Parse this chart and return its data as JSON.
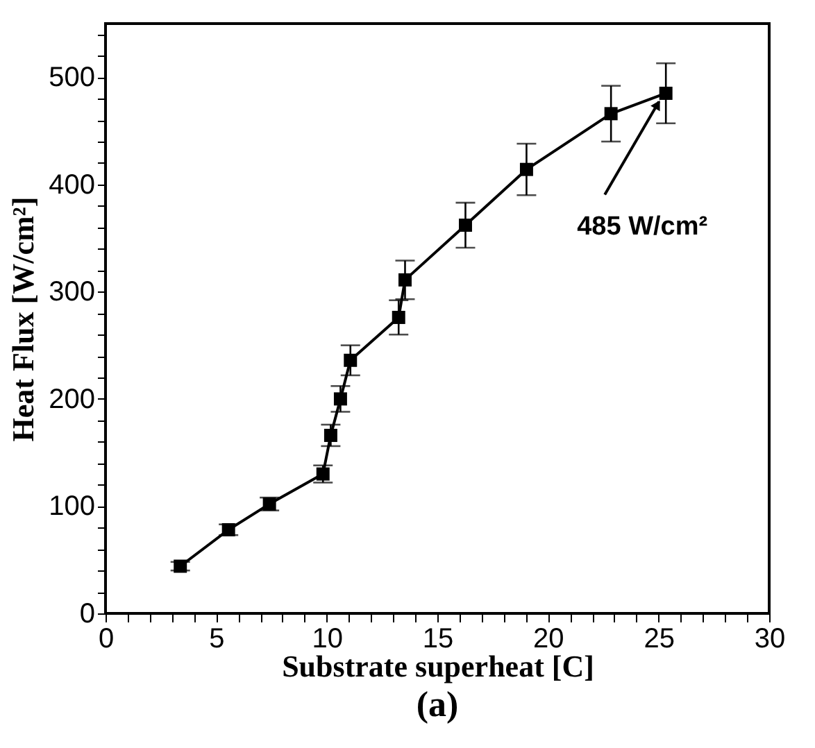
{
  "chart_data": {
    "type": "line",
    "xlabel": "Substrate superheat [C]",
    "ylabel": "Heat Flux [W/cm²]",
    "x": [
      3.38,
      5.56,
      7.41,
      9.83,
      10.18,
      10.62,
      11.07,
      13.25,
      13.54,
      16.27,
      19.03,
      22.85,
      25.33
    ],
    "series": [
      {
        "color": "#000000",
        "values": [
          44,
          78,
          102,
          130,
          166,
          200,
          236,
          276,
          311,
          362,
          414,
          466,
          485
        ],
        "errors": [
          4,
          5,
          6,
          8,
          10,
          12,
          14,
          16,
          18,
          21,
          24,
          26,
          28
        ]
      }
    ],
    "xlim": [
      0,
      30
    ],
    "ylim": [
      0,
      550
    ],
    "xticks": [
      0,
      {
        "value": 1,
        "label": null
      },
      {
        "value": 2,
        "label": null
      },
      {
        "value": 3,
        "label": null
      },
      {
        "value": 4,
        "label": null
      },
      5,
      {
        "value": 6,
        "label": null
      },
      {
        "value": 7,
        "label": null
      },
      {
        "value": 8,
        "label": null
      },
      {
        "value": 9,
        "label": null
      },
      10,
      {
        "value": 11,
        "label": null
      },
      {
        "value": 12,
        "label": null
      },
      {
        "value": 13,
        "label": null
      },
      {
        "value": 14,
        "label": null
      },
      15,
      {
        "value": 16,
        "label": null
      },
      {
        "value": 17,
        "label": null
      },
      {
        "value": 18,
        "label": null
      },
      {
        "value": 19,
        "label": null
      },
      20,
      {
        "value": 21,
        "label": null
      },
      {
        "value": 22,
        "label": null
      },
      {
        "value": 23,
        "label": null
      },
      {
        "value": 24,
        "label": null
      },
      25,
      {
        "value": 26,
        "label": null
      },
      {
        "value": 27,
        "label": null
      },
      {
        "value": 28,
        "label": null
      },
      {
        "value": 29,
        "label": null
      },
      30
    ],
    "yticks": [
      0,
      {
        "value": 20,
        "label": null
      },
      {
        "value": 40,
        "label": null
      },
      {
        "value": 60,
        "label": null
      },
      {
        "value": 80,
        "label": null
      },
      100,
      {
        "value": 120,
        "label": null
      },
      {
        "value": 140,
        "label": null
      },
      {
        "value": 160,
        "label": null
      },
      {
        "value": 180,
        "label": null
      },
      200,
      {
        "value": 220,
        "label": null
      },
      {
        "value": 240,
        "label": null
      },
      {
        "value": 260,
        "label": null
      },
      {
        "value": 280,
        "label": null
      },
      300,
      {
        "value": 320,
        "label": null
      },
      {
        "value": 340,
        "label": null
      },
      {
        "value": 360,
        "label": null
      },
      {
        "value": 380,
        "label": null
      },
      400,
      {
        "value": 420,
        "label": null
      },
      {
        "value": 440,
        "label": null
      },
      {
        "value": 460,
        "label": null
      },
      {
        "value": 480,
        "label": null
      },
      500,
      {
        "value": 520,
        "label": null
      },
      {
        "value": 540,
        "label": null
      }
    ],
    "marker": "square",
    "line_style": "solid",
    "grid": false,
    "annotations": [
      {
        "text": "485 W/cm²",
        "x": 25.33,
        "y": 485
      },
      "(a)"
    ]
  }
}
